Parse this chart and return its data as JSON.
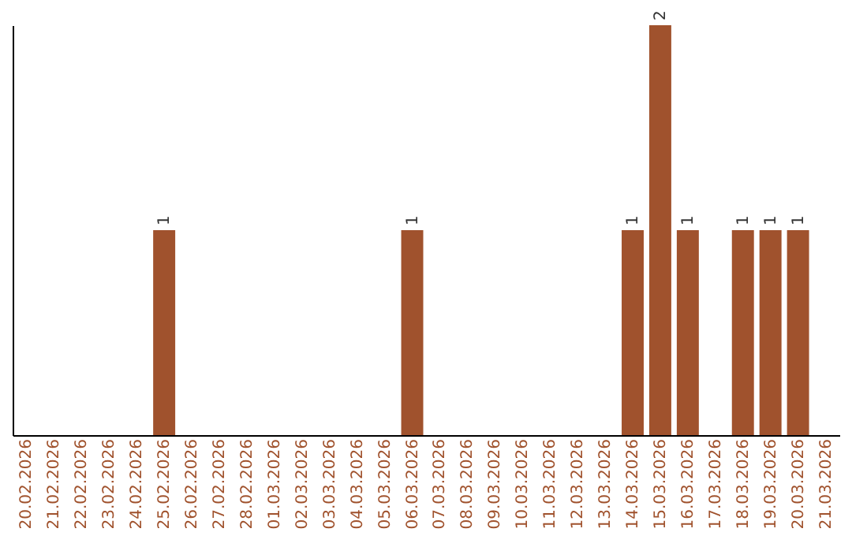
{
  "chart_data": {
    "type": "bar",
    "categories": [
      "20.02.2026",
      "21.02.2026",
      "22.02.2026",
      "23.02.2026",
      "24.02.2026",
      "25.02.2026",
      "26.02.2026",
      "27.02.2026",
      "28.02.2026",
      "01.03.2026",
      "02.03.2026",
      "03.03.2026",
      "04.03.2026",
      "05.03.2026",
      "06.03.2026",
      "07.03.2026",
      "08.03.2026",
      "09.03.2026",
      "10.03.2026",
      "11.03.2026",
      "12.03.2026",
      "13.03.2026",
      "14.03.2026",
      "15.03.2026",
      "16.03.2026",
      "17.03.2026",
      "18.03.2026",
      "19.03.2026",
      "20.03.2026",
      "21.03.2026"
    ],
    "values": [
      0,
      0,
      0,
      0,
      0,
      1,
      0,
      0,
      0,
      0,
      0,
      0,
      0,
      0,
      1,
      0,
      0,
      0,
      0,
      0,
      0,
      0,
      1,
      2,
      1,
      0,
      1,
      1,
      1,
      0
    ],
    "value_labels": [
      null,
      null,
      null,
      null,
      null,
      "1",
      null,
      null,
      null,
      null,
      null,
      null,
      null,
      null,
      "1",
      null,
      null,
      null,
      null,
      null,
      null,
      null,
      "1",
      "2",
      "1",
      null,
      "1",
      "1",
      "1",
      null
    ],
    "color": "#a0522d",
    "tick_labels": "x",
    "grid": false
  }
}
